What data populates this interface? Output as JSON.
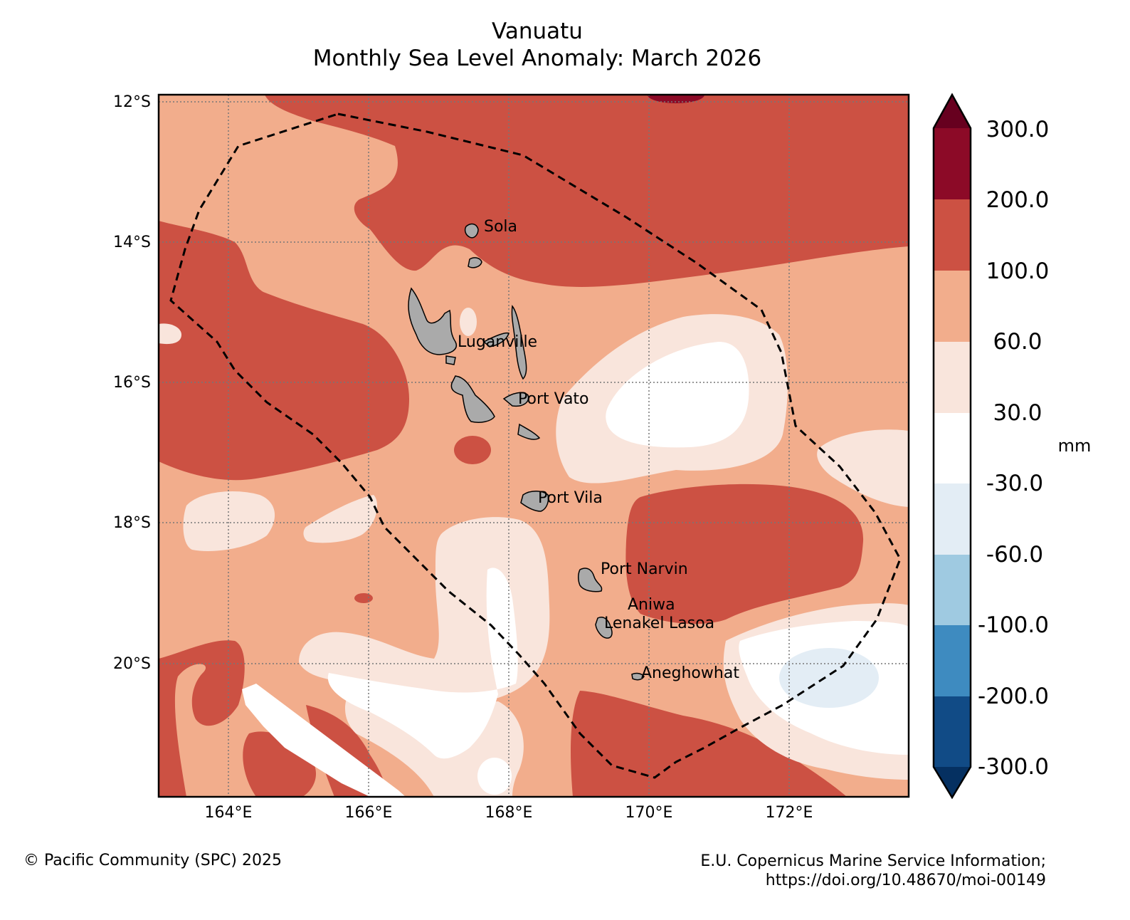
{
  "title": {
    "line1": "Vanuatu",
    "line2": "Monthly Sea Level Anomaly: March 2026"
  },
  "map": {
    "lat_ticks": [
      "12°S",
      "14°S",
      "16°S",
      "18°S",
      "20°S"
    ],
    "lon_ticks": [
      "164°E",
      "166°E",
      "168°E",
      "170°E",
      "172°E"
    ],
    "places": [
      "Sola",
      "Luganville",
      "Port Vato",
      "Port Vila",
      "Port Narvin",
      "Aniwa",
      "Lenakel",
      "Lasoa",
      "Aneghowhat"
    ]
  },
  "colorbar": {
    "unit": "mm",
    "labels": [
      "300.0",
      "200.0",
      "100.0",
      "60.0",
      "30.0",
      "-30.0",
      "-60.0",
      "-100.0",
      "-200.0",
      "-300.0"
    ],
    "colors": [
      "#67001f",
      "#8c0a27",
      "#cc5143",
      "#f2ad8c",
      "#f9e5dc",
      "#ffffff",
      "#e3edf5",
      "#9fcae1",
      "#3e8bc0",
      "#114b86",
      "#053061"
    ]
  },
  "footer": {
    "left": "© Pacific Community (SPC) 2025",
    "right_line1": "E.U. Copernicus Marine Service Information;",
    "right_line2": "https://doi.org/10.48670/moi-00149"
  }
}
